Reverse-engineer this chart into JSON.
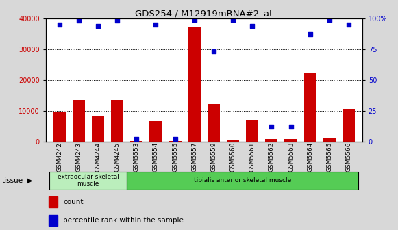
{
  "title": "GDS254 / M12919mRNA#2_at",
  "categories": [
    "GSM4242",
    "GSM4243",
    "GSM4244",
    "GSM4245",
    "GSM5553",
    "GSM5554",
    "GSM5555",
    "GSM5557",
    "GSM5559",
    "GSM5560",
    "GSM5561",
    "GSM5562",
    "GSM5563",
    "GSM5564",
    "GSM5565",
    "GSM5566"
  ],
  "counts": [
    9500,
    13500,
    8200,
    13500,
    200,
    6500,
    200,
    37000,
    12200,
    500,
    7000,
    700,
    700,
    22500,
    1200,
    10500
  ],
  "percentiles": [
    95,
    98,
    94,
    98,
    2,
    95,
    2,
    99,
    73,
    99,
    94,
    12,
    12,
    87,
    99,
    95
  ],
  "bar_color": "#cc0000",
  "dot_color": "#0000cc",
  "ylim_left": [
    0,
    40000
  ],
  "ylim_right": [
    0,
    100
  ],
  "yticks_left": [
    0,
    10000,
    20000,
    30000,
    40000
  ],
  "yticks_right": [
    0,
    25,
    50,
    75,
    100
  ],
  "ytick_labels_right": [
    "0",
    "25",
    "50",
    "75",
    "100%"
  ],
  "tissue_groups": [
    {
      "label": "extraocular skeletal\nmuscle",
      "start": 0,
      "end": 4,
      "color": "#bbeebc"
    },
    {
      "label": "tibialis anterior skeletal muscle",
      "start": 4,
      "end": 16,
      "color": "#55cc55"
    }
  ],
  "tissue_label": "tissue",
  "legend_count_label": "count",
  "legend_pct_label": "percentile rank within the sample",
  "fig_bg": "#d8d8d8",
  "plot_bg": "#ffffff",
  "xtick_bg": "#c8c8c8"
}
